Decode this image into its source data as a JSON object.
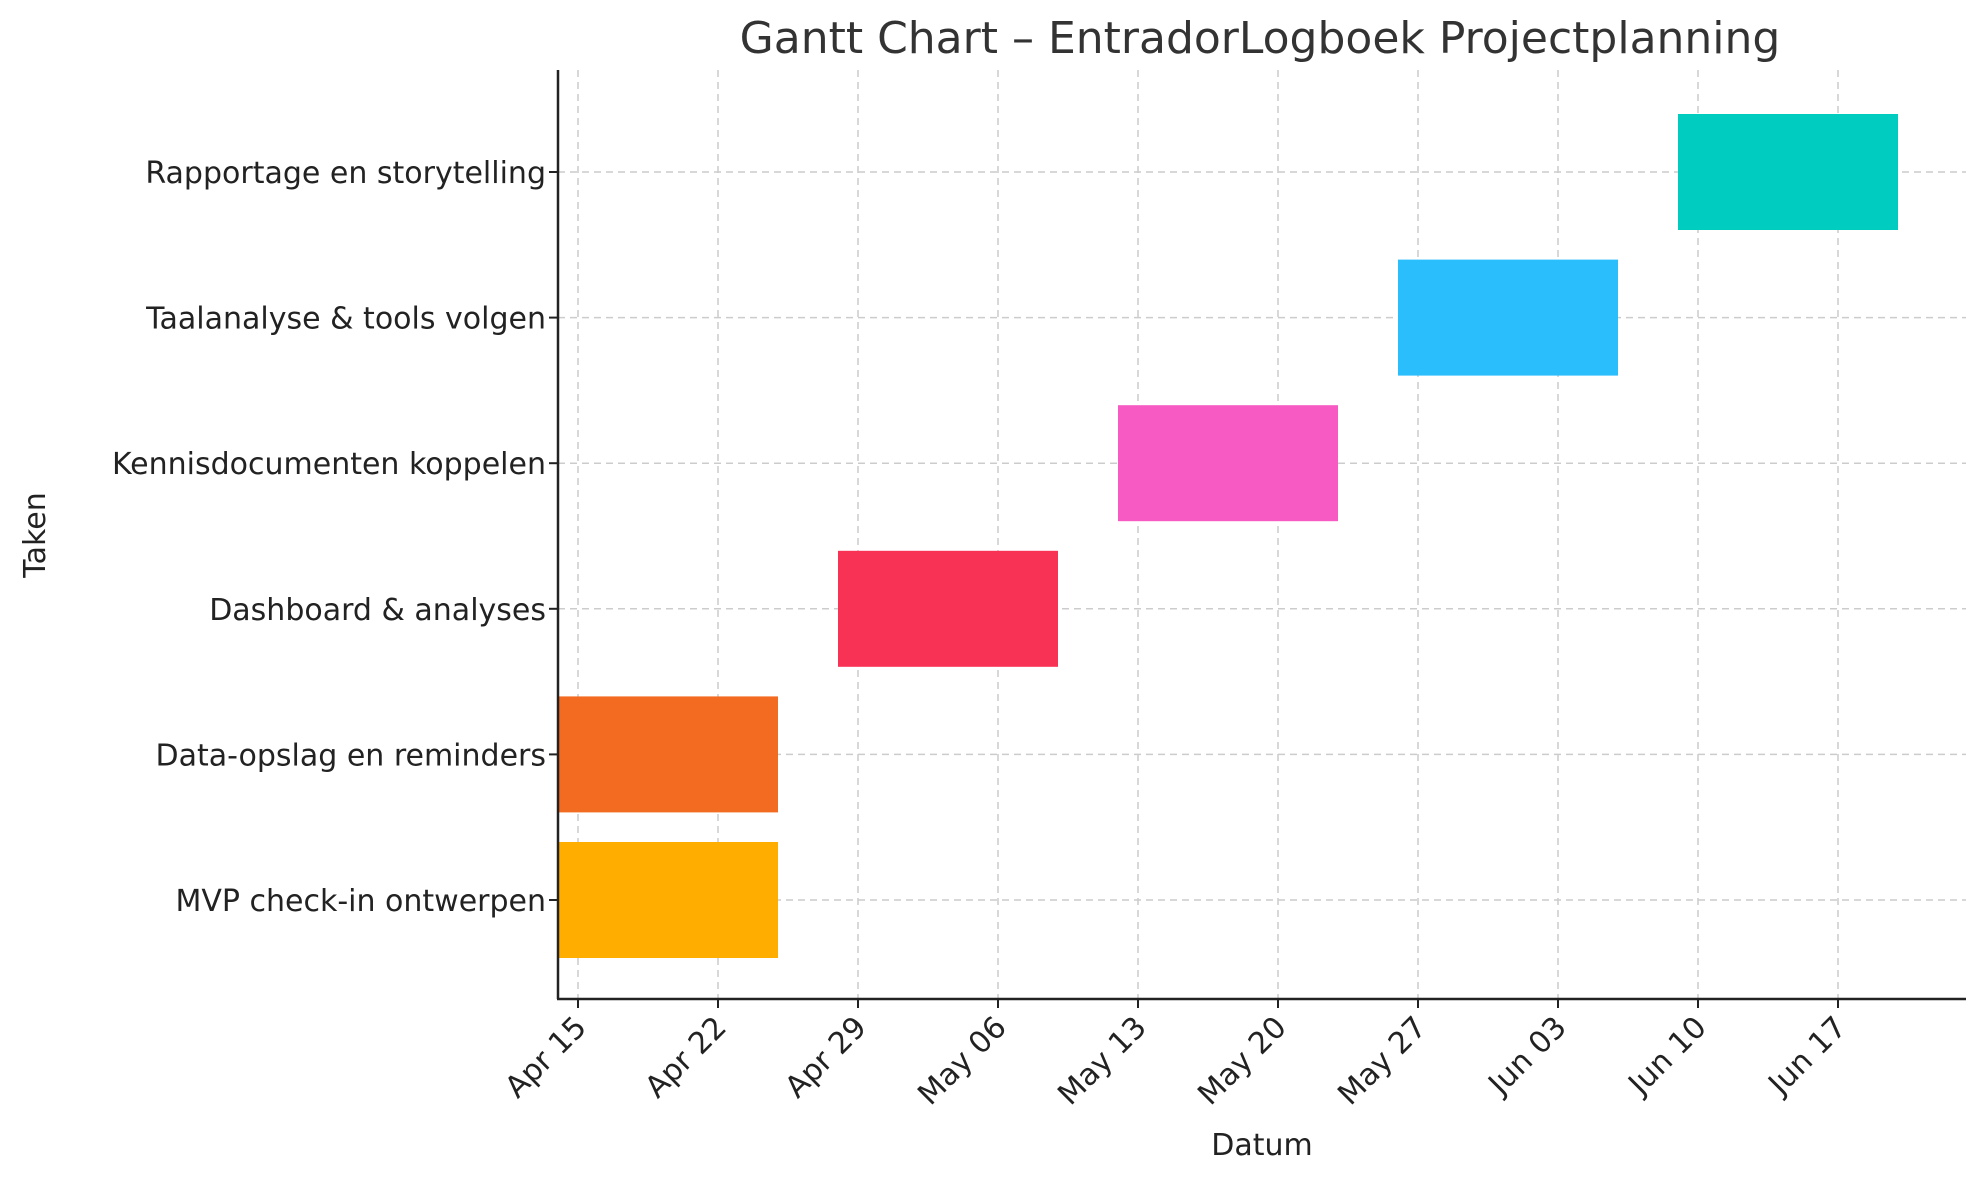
{
  "chart_data": {
    "type": "gantt",
    "title": "Gantt Chart – EntradorLogboek Projectplanning",
    "xlabel": "Datum",
    "ylabel": "Taken",
    "x_ticks": [
      "Apr 15",
      "Apr 22",
      "Apr 29",
      "May 06",
      "May 13",
      "May 20",
      "May 27",
      "Jun 03",
      "Jun 10",
      "Jun 17"
    ],
    "x_tick_dates": [
      "2024-04-15",
      "2024-04-22",
      "2024-04-29",
      "2024-05-06",
      "2024-05-13",
      "2024-05-20",
      "2024-05-27",
      "2024-06-03",
      "2024-06-10",
      "2024-06-17"
    ],
    "xlim": [
      "2024-04-14",
      "2024-06-24"
    ],
    "grid": true,
    "tasks": [
      {
        "name": "MVP check-in ontwerpen",
        "start": "2024-04-14",
        "end": "2024-04-25",
        "color": "#FFAE00"
      },
      {
        "name": "Data-opslag en reminders",
        "start": "2024-04-14",
        "end": "2024-04-25",
        "color": "#F26B21"
      },
      {
        "name": "Dashboard & analyses",
        "start": "2024-04-28",
        "end": "2024-05-09",
        "color": "#F83255"
      },
      {
        "name": "Kennisdocumenten koppelen",
        "start": "2024-05-12",
        "end": "2024-05-23",
        "color": "#F75AC2"
      },
      {
        "name": "Taalanalyse & tools volgen",
        "start": "2024-05-26",
        "end": "2024-06-06",
        "color": "#2BBEFC"
      },
      {
        "name": "Rapportage en storytelling",
        "start": "2024-06-09",
        "end": "2024-06-20",
        "color": "#00CCC0"
      }
    ]
  }
}
